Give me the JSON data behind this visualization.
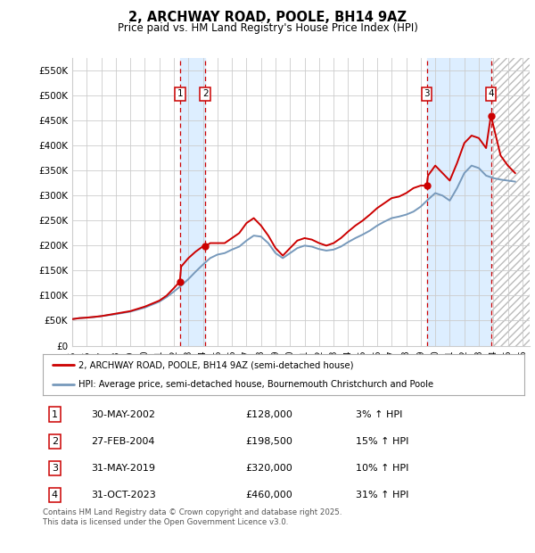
{
  "title": "2, ARCHWAY ROAD, POOLE, BH14 9AZ",
  "subtitle": "Price paid vs. HM Land Registry's House Price Index (HPI)",
  "property_label": "2, ARCHWAY ROAD, POOLE, BH14 9AZ (semi-detached house)",
  "hpi_label": "HPI: Average price, semi-detached house, Bournemouth Christchurch and Poole",
  "footer": "Contains HM Land Registry data © Crown copyright and database right 2025.\nThis data is licensed under the Open Government Licence v3.0.",
  "transactions": [
    {
      "num": 1,
      "date": "30-MAY-2002",
      "price": 128000,
      "pct": "3%",
      "dir": "↑",
      "x_year": 2002.41
    },
    {
      "num": 2,
      "date": "27-FEB-2004",
      "price": 198500,
      "pct": "15%",
      "dir": "↑",
      "x_year": 2004.16
    },
    {
      "num": 3,
      "date": "31-MAY-2019",
      "price": 320000,
      "pct": "10%",
      "dir": "↑",
      "x_year": 2019.41
    },
    {
      "num": 4,
      "date": "31-OCT-2023",
      "price": 460000,
      "pct": "31%",
      "dir": "↑",
      "x_year": 2023.83
    }
  ],
  "ylim": [
    0,
    575000
  ],
  "yticks": [
    0,
    50000,
    100000,
    150000,
    200000,
    250000,
    300000,
    350000,
    400000,
    450000,
    500000,
    550000
  ],
  "ytick_labels": [
    "£0",
    "£50K",
    "£100K",
    "£150K",
    "£200K",
    "£250K",
    "£300K",
    "£350K",
    "£400K",
    "£450K",
    "£500K",
    "£550K"
  ],
  "xlim_start": 1995.0,
  "xlim_end": 2026.5,
  "property_color": "#cc0000",
  "hpi_color": "#7799bb",
  "vline_color": "#cc0000",
  "shade_color": "#ddeeff",
  "bg_color": "#ffffff",
  "grid_color": "#cccccc",
  "box_color": "#cc0000",
  "hpi_data_x": [
    1995.0,
    1995.5,
    1996.0,
    1996.5,
    1997.0,
    1997.5,
    1998.0,
    1998.5,
    1999.0,
    1999.5,
    2000.0,
    2000.5,
    2001.0,
    2001.5,
    2002.0,
    2002.5,
    2003.0,
    2003.5,
    2004.0,
    2004.5,
    2005.0,
    2005.5,
    2006.0,
    2006.5,
    2007.0,
    2007.5,
    2008.0,
    2008.5,
    2009.0,
    2009.5,
    2010.0,
    2010.5,
    2011.0,
    2011.5,
    2012.0,
    2012.5,
    2013.0,
    2013.5,
    2014.0,
    2014.5,
    2015.0,
    2015.5,
    2016.0,
    2016.5,
    2017.0,
    2017.5,
    2018.0,
    2018.5,
    2019.0,
    2019.5,
    2020.0,
    2020.5,
    2021.0,
    2021.5,
    2022.0,
    2022.5,
    2023.0,
    2023.5,
    2024.0,
    2024.5,
    2025.0,
    2025.5
  ],
  "hpi_data_y": [
    53000,
    55000,
    56000,
    57000,
    59000,
    61000,
    63000,
    65500,
    68000,
    72000,
    76000,
    82000,
    88000,
    97000,
    108000,
    120000,
    133000,
    148000,
    162000,
    175000,
    182000,
    185000,
    192000,
    198000,
    210000,
    220000,
    218000,
    205000,
    185000,
    175000,
    185000,
    195000,
    200000,
    198000,
    193000,
    190000,
    192000,
    198000,
    207000,
    215000,
    222000,
    230000,
    240000,
    248000,
    255000,
    258000,
    262000,
    268000,
    278000,
    292000,
    305000,
    300000,
    290000,
    315000,
    345000,
    360000,
    355000,
    340000,
    335000,
    332000,
    330000,
    328000
  ],
  "property_data_x": [
    1995.0,
    1995.5,
    1996.0,
    1996.5,
    1997.0,
    1997.5,
    1998.0,
    1998.5,
    1999.0,
    1999.5,
    2000.0,
    2000.5,
    2001.0,
    2001.5,
    2002.0,
    2002.41,
    2002.5,
    2003.0,
    2003.5,
    2004.0,
    2004.16,
    2004.5,
    2005.0,
    2005.5,
    2006.0,
    2006.5,
    2007.0,
    2007.5,
    2008.0,
    2008.5,
    2009.0,
    2009.5,
    2010.0,
    2010.5,
    2011.0,
    2011.5,
    2012.0,
    2012.5,
    2013.0,
    2013.5,
    2014.0,
    2014.5,
    2015.0,
    2015.5,
    2016.0,
    2016.5,
    2017.0,
    2017.5,
    2018.0,
    2018.5,
    2019.0,
    2019.41,
    2019.5,
    2020.0,
    2020.5,
    2021.0,
    2021.5,
    2022.0,
    2022.5,
    2023.0,
    2023.5,
    2023.83,
    2024.0,
    2024.5,
    2025.0,
    2025.5
  ],
  "property_data_y": [
    53000,
    55000,
    56000,
    57500,
    59000,
    61500,
    64000,
    66500,
    69000,
    73500,
    78000,
    84000,
    90000,
    100000,
    115000,
    128000,
    158000,
    175000,
    188000,
    198500,
    198500,
    205000,
    205000,
    205000,
    215000,
    225000,
    245000,
    255000,
    240000,
    220000,
    195000,
    180000,
    195000,
    210000,
    215000,
    212000,
    205000,
    200000,
    205000,
    215000,
    228000,
    240000,
    250000,
    262000,
    275000,
    285000,
    295000,
    298000,
    305000,
    315000,
    320000,
    320000,
    340000,
    360000,
    345000,
    330000,
    365000,
    405000,
    420000,
    415000,
    395000,
    460000,
    440000,
    380000,
    360000,
    345000
  ]
}
